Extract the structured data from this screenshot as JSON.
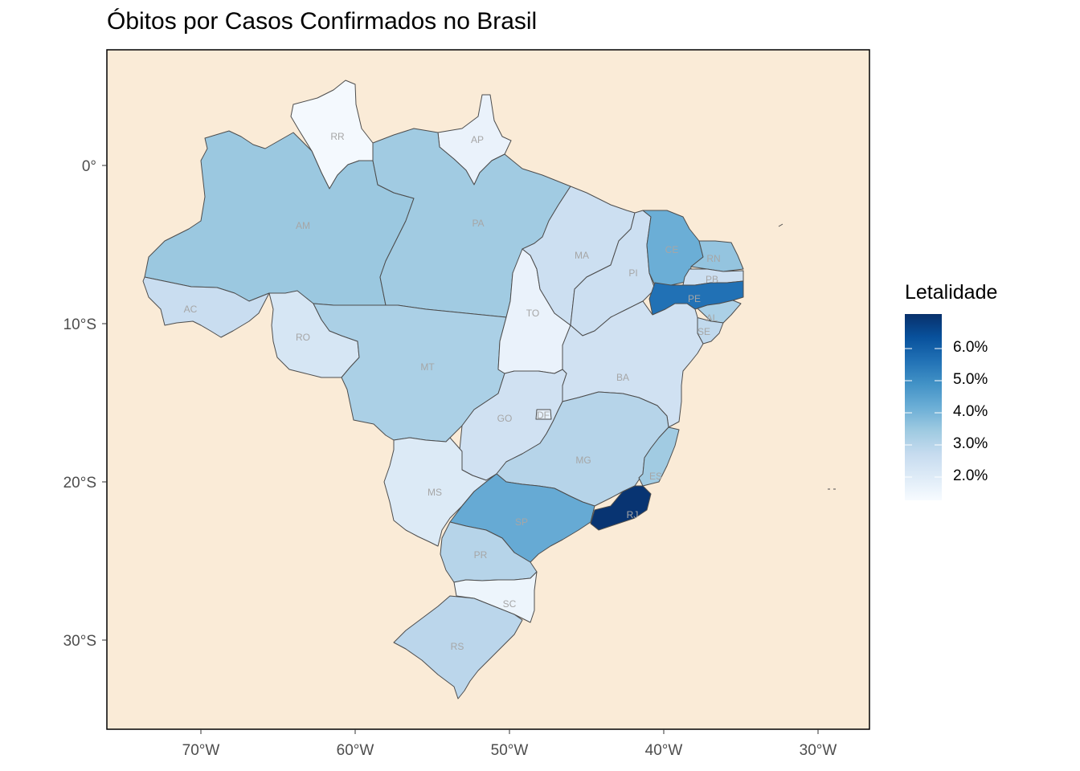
{
  "title": "Óbitos por Casos Confirmados no Brasil",
  "colors": {
    "panel_background": "#faebd7",
    "state_border": "#4d4d4d",
    "scale_low": "#f7fbff",
    "scale_high": "#08306b"
  },
  "axes": {
    "x_ticks": [
      "70°W",
      "60°W",
      "50°W",
      "40°W",
      "30°W"
    ],
    "y_ticks": [
      "0°",
      "10°S",
      "20°S",
      "30°S"
    ]
  },
  "legend": {
    "title": "Letalidade",
    "ticks": [
      "6.0%",
      "5.0%",
      "4.0%",
      "3.0%",
      "2.0%"
    ],
    "gradient": [
      "#08306b",
      "#08519c",
      "#2171b5",
      "#4292c6",
      "#6baed6",
      "#9ecae1",
      "#c6dbef",
      "#deebf7",
      "#f7fbff"
    ]
  },
  "states": [
    {
      "uf": "RR",
      "label": "RR",
      "letalidade": 1.1
    },
    {
      "uf": "AP",
      "label": "AP",
      "letalidade": 1.4
    },
    {
      "uf": "AM",
      "label": "AM",
      "letalidade": 3.3
    },
    {
      "uf": "PA",
      "label": "PA",
      "letalidade": 3.2
    },
    {
      "uf": "AC",
      "label": "AC",
      "letalidade": 2.4
    },
    {
      "uf": "RO",
      "label": "RO",
      "letalidade": 2.0
    },
    {
      "uf": "MT",
      "label": "MT",
      "letalidade": 3.0
    },
    {
      "uf": "TO",
      "label": "TO",
      "letalidade": 1.4
    },
    {
      "uf": "MA",
      "label": "MA",
      "letalidade": 2.3
    },
    {
      "uf": "PI",
      "label": "PI",
      "letalidade": 2.3
    },
    {
      "uf": "CE",
      "label": "CE",
      "letalidade": 4.0
    },
    {
      "uf": "RN",
      "label": "RN",
      "letalidade": 3.4
    },
    {
      "uf": "PB",
      "label": "PB",
      "letalidade": 2.3
    },
    {
      "uf": "PE",
      "label": "PE",
      "letalidade": 5.5
    },
    {
      "uf": "AL",
      "label": "AL",
      "letalidade": 3.0
    },
    {
      "uf": "SE",
      "label": "SE",
      "letalidade": 2.6
    },
    {
      "uf": "BA",
      "label": "BA",
      "letalidade": 2.2
    },
    {
      "uf": "GO",
      "label": "GO",
      "letalidade": 2.2
    },
    {
      "uf": "DF",
      "label": "DF",
      "letalidade": 1.5
    },
    {
      "uf": "MG",
      "label": "MG",
      "letalidade": 2.8
    },
    {
      "uf": "ES",
      "label": "ES",
      "letalidade": 3.2
    },
    {
      "uf": "MS",
      "label": "MS",
      "letalidade": 1.8
    },
    {
      "uf": "SP",
      "label": "SP",
      "letalidade": 4.1
    },
    {
      "uf": "RJ",
      "label": "RJ",
      "letalidade": 6.9
    },
    {
      "uf": "PR",
      "label": "PR",
      "letalidade": 2.8
    },
    {
      "uf": "SC",
      "label": "SC",
      "letalidade": 1.3
    },
    {
      "uf": "RS",
      "label": "RS",
      "letalidade": 2.7
    }
  ]
}
